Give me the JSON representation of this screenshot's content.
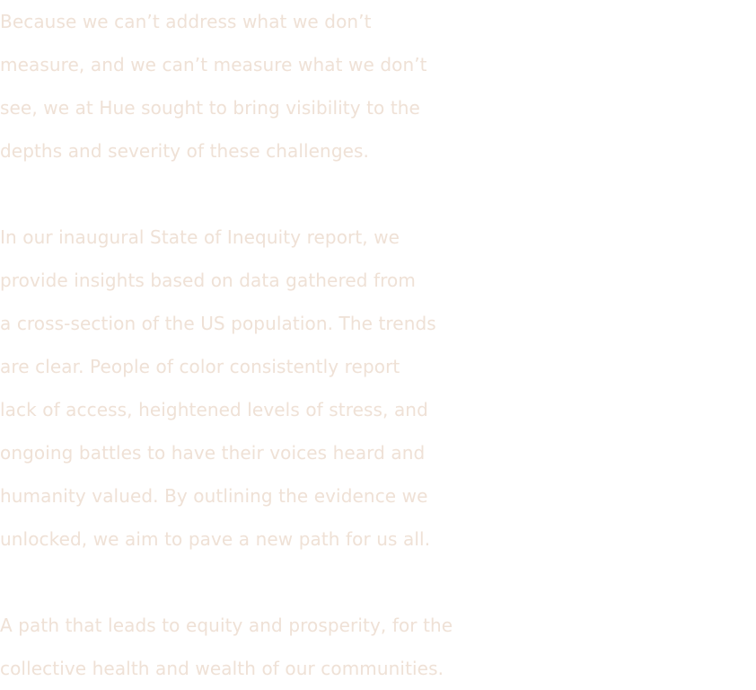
{
  "colors": {
    "text": "#efe1d6",
    "background": "#ffffff"
  },
  "paragraphs": [
    {
      "lines": [
        "Because we can’t address what we don’t",
        "measure, and we can’t measure what we don’t",
        "see, we at Hue sought to bring visibility to the",
        "depths and severity of these challenges."
      ]
    },
    {
      "lines": [
        "In our inaugural State of Inequity report, we",
        "provide insights based on data gathered from",
        "a cross-section of the US population. The trends",
        "are clear. People of color consistently report",
        "lack of access, heightened levels of stress, and",
        "ongoing battles to have their voices heard and",
        "humanity valued. By outlining the evidence we",
        "unlocked, we aim to pave a new path for us all."
      ]
    },
    {
      "lines": [
        "A path that leads to equity and prosperity, for the",
        "collective health and wealth of our communities."
      ]
    }
  ]
}
